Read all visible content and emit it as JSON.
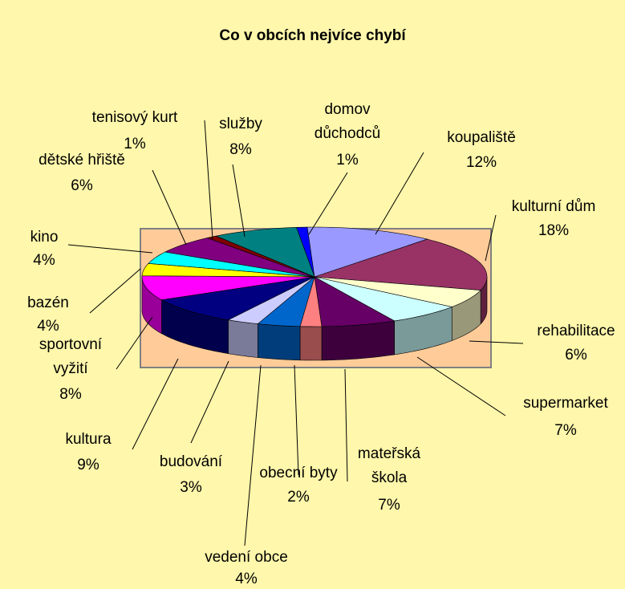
{
  "chart_data": {
    "type": "pie",
    "title": "Co v obcích nejvíce chybí",
    "categories": [
      "domov důchodců",
      "koupaliště",
      "kulturní dům",
      "rehabilitace",
      "supermarket",
      "mateřská škola",
      "obecní byty",
      "vedení obce",
      "budování",
      "kultura",
      "sportovní vyžití",
      "bazén",
      "kino",
      "dětské hřiště",
      "tenisový kurt",
      "služby"
    ],
    "values": [
      1,
      12,
      18,
      6,
      7,
      7,
      2,
      4,
      3,
      9,
      8,
      4,
      4,
      6,
      1,
      8
    ],
    "value_labels": [
      "1%",
      "12%",
      "18%",
      "6%",
      "7%",
      "7%",
      "2%",
      "4%",
      "3%",
      "9%",
      "8%",
      "4%",
      "4%",
      "6%",
      "1%",
      "8%"
    ],
    "colors": [
      "#0000ff",
      "#9999ff",
      "#993366",
      "#ffffcc",
      "#ccffff",
      "#660066",
      "#ff8080",
      "#0066cc",
      "#ccccff",
      "#000080",
      "#ff00ff",
      "#ffff00",
      "#00ffff",
      "#800080",
      "#800000",
      "#008080"
    ]
  }
}
